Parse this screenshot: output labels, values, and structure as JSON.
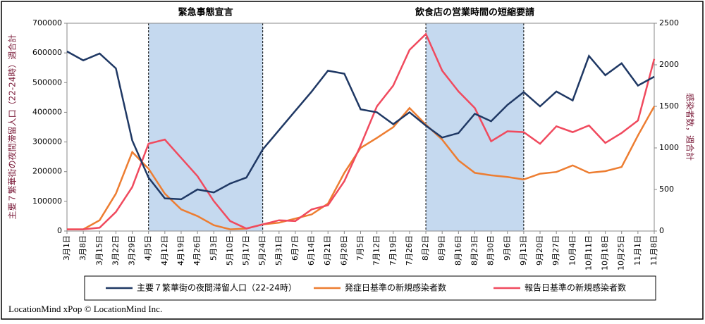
{
  "chart_data": {
    "type": "line",
    "categories": [
      "3月1日",
      "3月8日",
      "3月15日",
      "3月22日",
      "3月29日",
      "4月5日",
      "4月12日",
      "4月19日",
      "4月26日",
      "5月3日",
      "5月10日",
      "5月17日",
      "5月24日",
      "5月31日",
      "6月7日",
      "6月14日",
      "6月21日",
      "6月28日",
      "7月5日",
      "7月12日",
      "7月19日",
      "7月26日",
      "8月2日",
      "8月9日",
      "8月16日",
      "8月23日",
      "8月30日",
      "9月6日",
      "9月13日",
      "9月20日",
      "9月27日",
      "10月4日",
      "10月11日",
      "10月18日",
      "10月25日",
      "11月1日",
      "11月8日"
    ],
    "series": [
      {
        "name": "主要７繁華街の夜間滞留人口（22-24時）",
        "color": "#1f3864",
        "axis": "y",
        "values": [
          605000,
          575000,
          598000,
          548000,
          305000,
          180000,
          110000,
          107000,
          140000,
          130000,
          160000,
          180000,
          275000,
          340000,
          405000,
          470000,
          540000,
          530000,
          410000,
          400000,
          360000,
          400000,
          355000,
          315000,
          330000,
          395000,
          370000,
          425000,
          468000,
          420000,
          470000,
          440000,
          590000,
          525000,
          565000,
          490000,
          520000
        ]
      },
      {
        "name": "発症日基準の新規感染者数",
        "color": "#ed7d31",
        "axis": "y2",
        "values": [
          20,
          20,
          130,
          450,
          950,
          750,
          450,
          260,
          180,
          70,
          20,
          30,
          80,
          100,
          150,
          200,
          330,
          700,
          1000,
          1120,
          1250,
          1480,
          1280,
          1100,
          850,
          700,
          670,
          650,
          620,
          690,
          710,
          790,
          700,
          720,
          770,
          1150,
          1500
        ]
      },
      {
        "name": "報告日基準の新規感染者数",
        "color": "#f04a5e",
        "axis": "y2",
        "values": [
          20,
          20,
          40,
          230,
          530,
          1050,
          1100,
          880,
          660,
          360,
          120,
          30,
          80,
          130,
          120,
          260,
          310,
          600,
          1030,
          1500,
          1750,
          2180,
          2370,
          1930,
          1680,
          1480,
          1080,
          1200,
          1190,
          1050,
          1260,
          1190,
          1270,
          1060,
          1180,
          1330,
          2070
        ]
      }
    ],
    "ylim": [
      0,
      700000
    ],
    "yticks": [
      0,
      100000,
      200000,
      300000,
      400000,
      500000,
      600000,
      700000
    ],
    "y2lim": [
      0,
      2500
    ],
    "y2ticks": [
      0,
      500,
      1000,
      1500,
      2000,
      2500
    ],
    "ylabel": "主要７繁華街の夜間滞留人口（22-24時）週合計",
    "y2label": "感染者数，週合計",
    "regions": [
      {
        "label": "緊急事態宣言",
        "start": "4月5日",
        "end": "5月24日",
        "color": "#c5d9ef"
      },
      {
        "label": "飲食店の営業時間の短縮要請",
        "start": "8月2日",
        "end": "9月13日",
        "color": "#c5d9ef"
      }
    ],
    "legend": "bottom",
    "source": "LocationMind xPop © LocationMind Inc."
  }
}
